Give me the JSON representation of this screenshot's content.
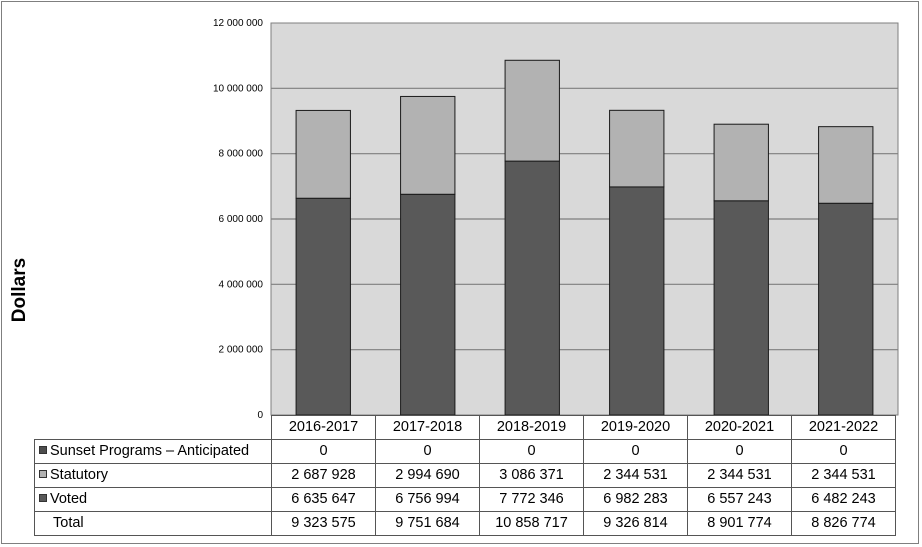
{
  "chart_data": {
    "type": "bar",
    "stacked": true,
    "ylabel": "Dollars",
    "ylim": [
      0,
      12000000
    ],
    "yticks": [
      "0",
      "2 000 000",
      "4 000 000",
      "6 000 000",
      "8 000 000",
      "10 000 000",
      "12 000 000"
    ],
    "categories": [
      "2016-2017",
      "2017-2018",
      "2018-2019",
      "2019-2020",
      "2020-2021",
      "2021-2022"
    ],
    "series": [
      {
        "name": "Sunset Programs – Anticipated",
        "color": "#4d4d4d",
        "values": [
          0,
          0,
          0,
          0,
          0,
          0
        ],
        "labels": [
          "0",
          "0",
          "0",
          "0",
          "0",
          "0"
        ]
      },
      {
        "name": "Statutory",
        "color": "#b2b2b2",
        "values": [
          2687928,
          2994690,
          3086371,
          2344531,
          2344531,
          2344531
        ],
        "labels": [
          "2 687 928",
          "2 994 690",
          "3 086 371",
          "2 344 531",
          "2 344 531",
          "2 344 531"
        ]
      },
      {
        "name": "Voted",
        "color": "#595959",
        "values": [
          6635647,
          6756994,
          7772346,
          6982283,
          6557243,
          6482243
        ],
        "labels": [
          "6 635 647",
          "6 756 994",
          "7 772 346",
          "6 982 283",
          "6 557 243",
          "6 482 243"
        ]
      }
    ],
    "total": {
      "name": "Total",
      "labels": [
        "9 323 575",
        "9 751 684",
        "10 858 717",
        "9 326 814",
        "8 901 774",
        "8 826 774"
      ]
    },
    "grid": true,
    "legend": "data-table"
  }
}
